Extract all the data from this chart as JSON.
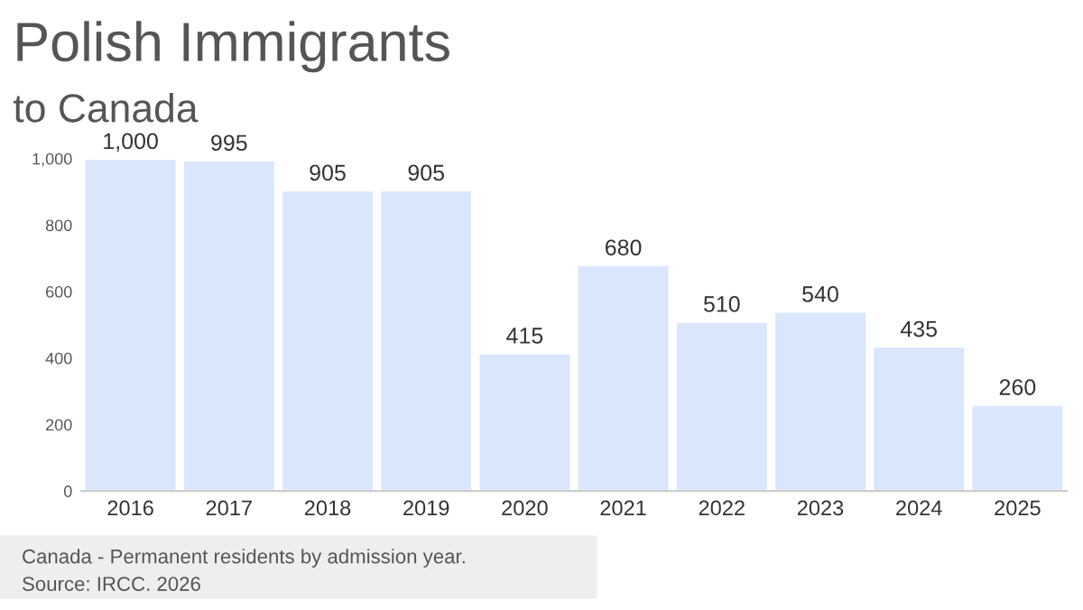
{
  "chart_data": {
    "type": "bar",
    "title": "Polish Immigrants",
    "subtitle": "to Canada",
    "categories": [
      "2016",
      "2017",
      "2018",
      "2019",
      "2020",
      "2021",
      "2022",
      "2023",
      "2024",
      "2025"
    ],
    "values": [
      1000,
      995,
      905,
      905,
      415,
      680,
      510,
      540,
      435,
      260
    ],
    "value_labels": [
      "1,000",
      "995",
      "905",
      "905",
      "415",
      "680",
      "510",
      "540",
      "435",
      "260"
    ],
    "color": "#d9e6fb",
    "ylim": [
      0,
      1000
    ],
    "yticks": [
      0,
      200,
      400,
      600,
      800,
      {
        "value": 1000,
        "label": "1,000"
      }
    ],
    "grid": false,
    "annotations": [
      "Canada - Permanent residents by admission year.",
      "Source: IRCC. 2026"
    ]
  }
}
